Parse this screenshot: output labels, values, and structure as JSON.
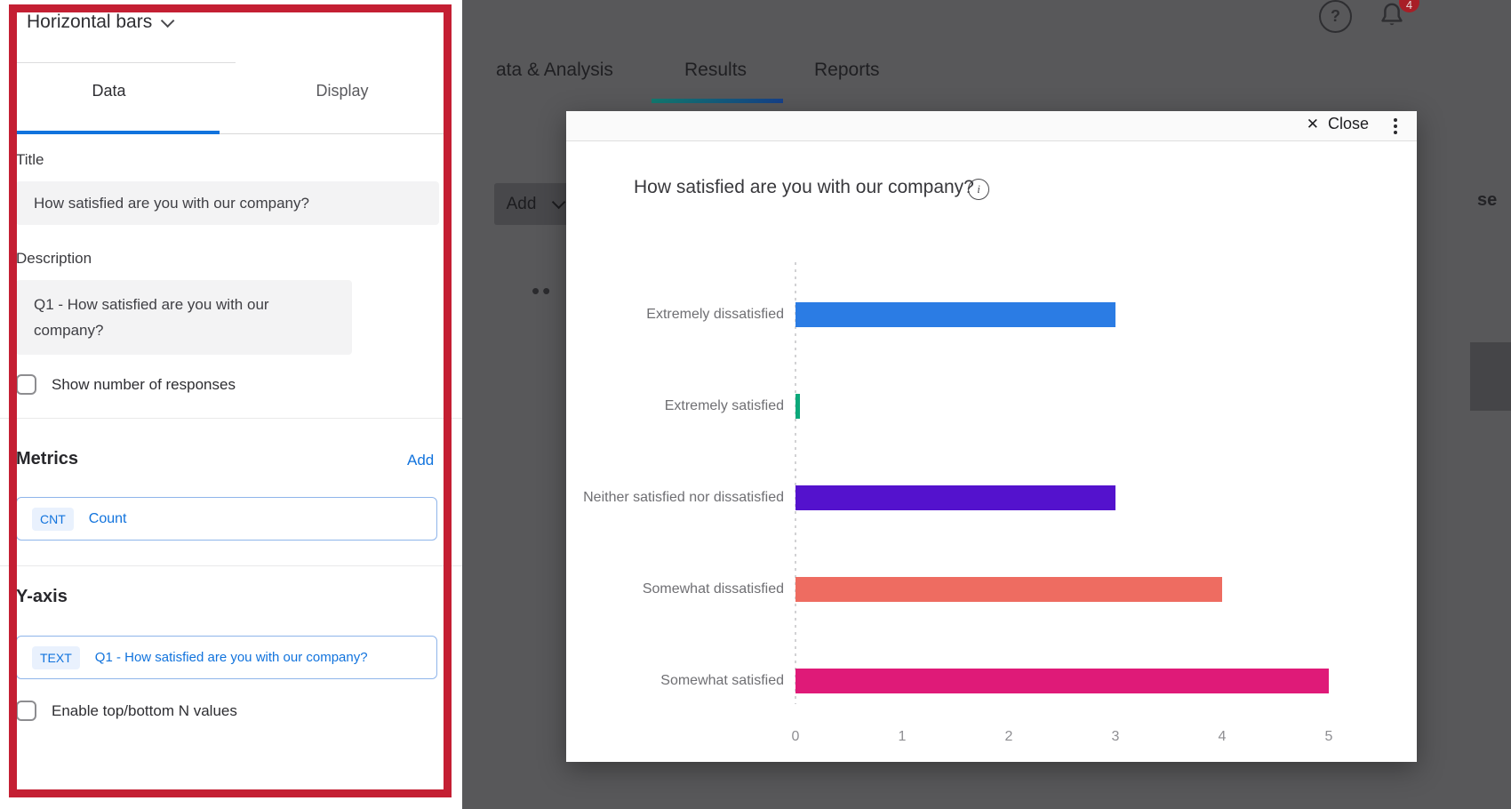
{
  "panel": {
    "selector_label": "Horizontal bars",
    "tabs": {
      "data": "Data",
      "display": "Display"
    },
    "title_label": "Title",
    "title_value": "How satisfied are you with our company?",
    "description_label": "Description",
    "description_value": "Q1 - How satisfied are you with our company?",
    "show_responses_label": "Show number of responses",
    "metrics_heading": "Metrics",
    "metrics_add_label": "Add",
    "metric_badge": "CNT",
    "metric_name": "Count",
    "yaxis_heading": "Y-axis",
    "yaxis_badge": "TEXT",
    "yaxis_value": "Q1 - How satisfied are you with our company?",
    "topbottom_label": "Enable top/bottom N values"
  },
  "background": {
    "nav": [
      "ata & Analysis",
      "Results",
      "Reports"
    ],
    "add_button_label": "Add",
    "overflow_dots": "••",
    "clipped_text_right": "se",
    "help_glyph": "?",
    "notification_count": "4"
  },
  "modal": {
    "close_label": "Close",
    "info_glyph": "i"
  },
  "colors": {
    "accent_blue": "#1173dd",
    "annotation_red": "#c41f33",
    "active_tab_gradient": [
      "#127a70",
      "#16418a"
    ],
    "badge_red": "#a81e26"
  },
  "chart_data": {
    "type": "bar",
    "orientation": "horizontal",
    "title": "How satisfied are you with our company?",
    "categories": [
      "Extremely dissatisfied",
      "Extremely satisfied",
      "Neither satisfied nor dissatisfied",
      "Somewhat dissatisfied",
      "Somewhat satisfied"
    ],
    "values": [
      3,
      0,
      3,
      4,
      5
    ],
    "bar_colors": [
      "#2b7ce4",
      "#0ca87a",
      "#5412cd",
      "#ee6c61",
      "#df1a78"
    ],
    "xlabel": "",
    "ylabel": "",
    "xlim": [
      0,
      5
    ],
    "x_ticks": [
      "0",
      "1",
      "2",
      "3",
      "4",
      "5"
    ],
    "grid": "dotted zero line only",
    "legend": "none"
  }
}
